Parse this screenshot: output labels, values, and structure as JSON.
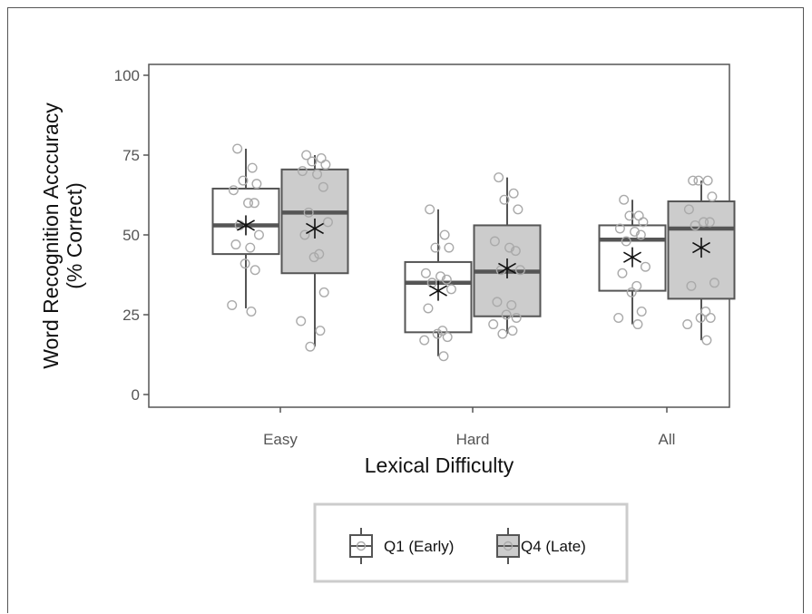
{
  "chart_data": {
    "type": "box",
    "xlabel": "Lexical Difficulty",
    "ylabel": [
      "Word Recognition Acccuracy",
      "(% Correct)"
    ],
    "ylim": [
      0,
      100
    ],
    "yticks": [
      0,
      25,
      50,
      75,
      100
    ],
    "categories": [
      "Easy",
      "Hard",
      "All"
    ],
    "grid": false,
    "legend_position": "bottom",
    "series": [
      {
        "name": "Q1 (Early)",
        "fill": "#ffffff",
        "boxes": [
          {
            "category": "Easy",
            "whisker_low": 27,
            "q1": 44,
            "median": 53,
            "q3": 64.5,
            "whisker_high": 77,
            "mean": 53,
            "points": [
              77,
              71,
              67,
              66,
              64,
              60,
              60,
              53,
              50,
              47,
              46,
              41,
              39,
              28,
              26
            ]
          },
          {
            "category": "Hard",
            "whisker_low": 12,
            "q1": 19.5,
            "median": 35,
            "q3": 41.5,
            "whisker_high": 58,
            "mean": 32.5,
            "points": [
              58,
              50,
              46,
              46,
              38,
              37,
              36,
              35,
              33,
              27,
              20,
              19,
              18,
              17,
              12
            ]
          },
          {
            "category": "All",
            "whisker_low": 22,
            "q1": 32.5,
            "median": 48.5,
            "q3": 53,
            "whisker_high": 61,
            "mean": 43,
            "points": [
              61,
              56,
              56,
              54,
              52,
              51,
              50,
              48,
              40,
              38,
              34,
              32,
              26,
              24,
              22
            ]
          }
        ]
      },
      {
        "name": "Q4 (Late)",
        "fill": "#cccccc",
        "boxes": [
          {
            "category": "Easy",
            "whisker_low": 15,
            "q1": 38,
            "median": 57,
            "q3": 70.5,
            "whisker_high": 75,
            "mean": 52,
            "points": [
              75,
              74,
              73,
              72,
              70,
              69,
              65,
              57,
              54,
              50,
              44,
              43,
              32,
              23,
              20,
              15
            ]
          },
          {
            "category": "Hard",
            "whisker_low": 19,
            "q1": 24.5,
            "median": 38.5,
            "q3": 53,
            "whisker_high": 68,
            "mean": 39.5,
            "points": [
              68,
              63,
              61,
              58,
              48,
              46,
              45,
              39,
              39,
              29,
              28,
              25,
              24,
              22,
              20,
              19
            ]
          },
          {
            "category": "All",
            "whisker_low": 17,
            "q1": 30,
            "median": 52,
            "q3": 60.5,
            "whisker_high": 67,
            "mean": 46,
            "points": [
              67,
              67,
              67,
              62,
              58,
              54,
              54,
              53,
              35,
              34,
              26,
              24,
              24,
              22,
              17
            ]
          }
        ]
      }
    ]
  }
}
